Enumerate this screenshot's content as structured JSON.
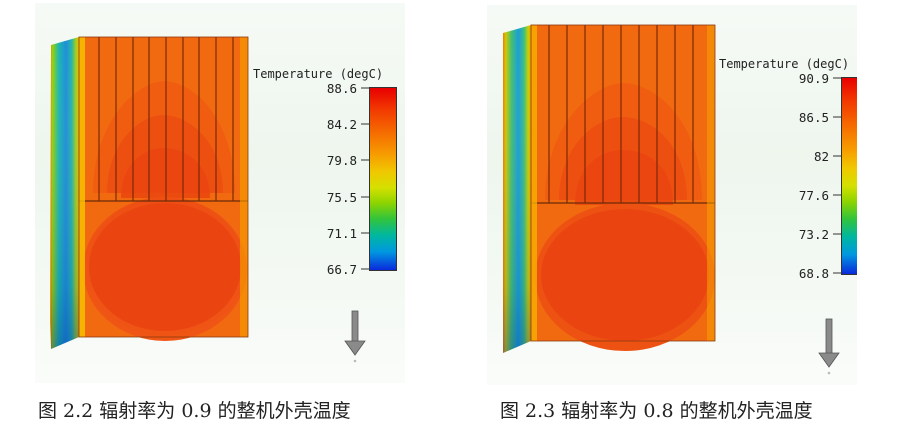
{
  "figures": [
    {
      "legend_title": "Temperature (degC)",
      "scale": [
        "88.6",
        "84.2",
        "79.8",
        "75.5",
        "71.1",
        "66.7"
      ],
      "max": 88.6,
      "min": 66.7,
      "caption": "图 2.2  辐射率为 0.9 的整机外壳温度"
    },
    {
      "legend_title": "Temperature (degC)",
      "scale": [
        "90.9",
        "86.5",
        "82",
        "77.6",
        "73.2",
        "68.8"
      ],
      "max": 90.9,
      "min": 68.8,
      "caption": "图 2.3  辐射率为 0.8 的整机外壳温度"
    }
  ],
  "colors": {
    "hot": "#e80000",
    "warm": "#f56a00",
    "mid": "#f0c800",
    "cool": "#31c43c",
    "cold": "#0a2adc"
  },
  "icons": {
    "gravity": "down-arrow-icon"
  }
}
